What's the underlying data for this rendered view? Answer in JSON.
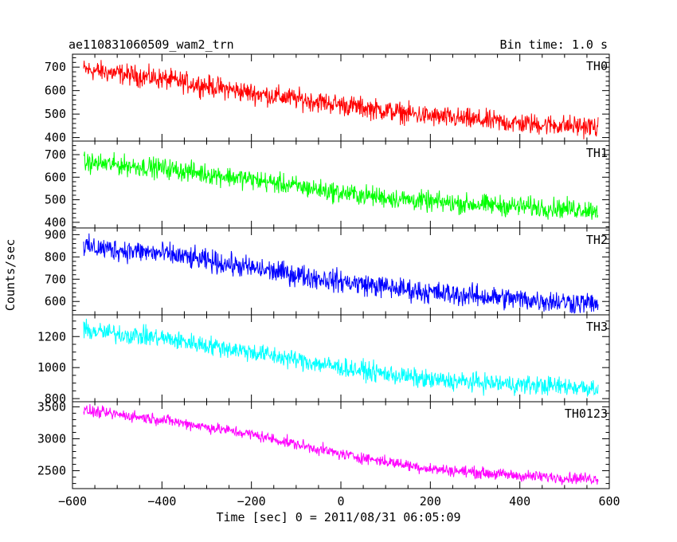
{
  "header": {
    "title": "ae110831060509_wam2_trn",
    "bin_time": "Bin time: 1.0 s"
  },
  "chart_data": {
    "type": "line",
    "title": "ae110831060509_wam2_trn",
    "xlabel": "Time [sec] 0 = 2011/08/31 06:05:09",
    "ylabel": "Counts/sec",
    "xlim": [
      -600,
      600
    ],
    "x_range_data": [
      -575,
      575
    ],
    "x_ticks": [
      -600,
      -400,
      -200,
      0,
      200,
      400,
      600
    ],
    "x_tick_labels": [
      "−600",
      "−400",
      "−200",
      "0",
      "200",
      "400",
      "600"
    ],
    "grid": false,
    "panels": [
      {
        "name": "TH0",
        "color": "#ff0000",
        "ylim": [
          385,
          755
        ],
        "y_ticks": [
          400,
          500,
          600,
          700
        ],
        "y_tick_labels": [
          "400",
          "500",
          "600",
          "700"
        ],
        "trend_x": [
          -575,
          -400,
          -200,
          0,
          200,
          400,
          575
        ],
        "trend_y": [
          690,
          650,
          590,
          540,
          490,
          460,
          445
        ],
        "noise": 40
      },
      {
        "name": "TH1",
        "color": "#00ff00",
        "ylim": [
          375,
          760
        ],
        "y_ticks": [
          400,
          500,
          600,
          700
        ],
        "y_tick_labels": [
          "400",
          "500",
          "600",
          "700"
        ],
        "trend_x": [
          -575,
          -400,
          -200,
          0,
          200,
          400,
          575
        ],
        "trend_y": [
          665,
          640,
          590,
          530,
          490,
          470,
          455
        ],
        "noise": 40
      },
      {
        "name": "TH2",
        "color": "#0000ff",
        "ylim": [
          540,
          930
        ],
        "y_ticks": [
          600,
          700,
          800,
          900
        ],
        "y_tick_labels": [
          "600",
          "700",
          "800",
          "900"
        ],
        "trend_x": [
          -575,
          -400,
          -200,
          0,
          200,
          400,
          575
        ],
        "trend_y": [
          845,
          815,
          750,
          690,
          640,
          610,
          590
        ],
        "noise": 45
      },
      {
        "name": "TH3",
        "color": "#00ffff",
        "ylim": [
          780,
          1340
        ],
        "y_ticks": [
          800,
          1000,
          1200
        ],
        "y_tick_labels": [
          "800",
          "1000",
          "1200"
        ],
        "trend_x": [
          -575,
          -400,
          -200,
          0,
          200,
          400,
          575
        ],
        "trend_y": [
          1240,
          1190,
          1100,
          1000,
          920,
          890,
          870
        ],
        "noise": 55
      },
      {
        "name": "TH0123",
        "color": "#ff00ff",
        "ylim": [
          2220,
          3580
        ],
        "y_ticks": [
          2500,
          3000,
          3500
        ],
        "y_tick_labels": [
          "2500",
          "3000",
          "3500"
        ],
        "trend_x": [
          -575,
          -400,
          -200,
          0,
          200,
          400,
          575
        ],
        "trend_y": [
          3440,
          3300,
          3070,
          2760,
          2530,
          2420,
          2370
        ],
        "noise": 80
      }
    ]
  }
}
